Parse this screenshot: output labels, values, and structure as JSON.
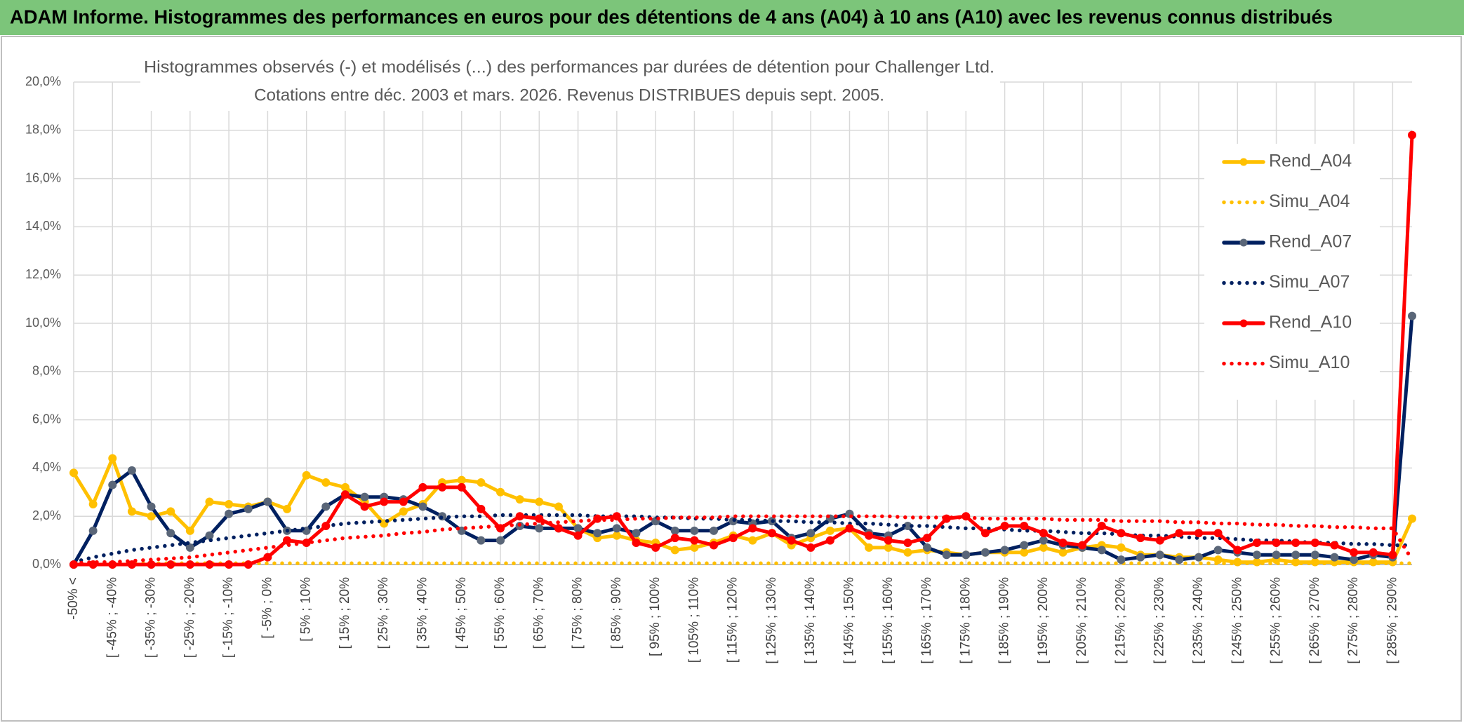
{
  "chart_data": {
    "type": "line",
    "title": "ADAM Informe. Histogrammes des performances en euros pour des détentions de 4 ans (A04) à 10 ans (A10) avec les revenus connus distribués",
    "subtitle": [
      "Histogrammes observés (-) et modélisés (...) des performances par durées de détention pour Challenger Ltd.",
      "Cotations entre déc. 2003 et mars. 2026. Revenus DISTRIBUES depuis sept. 2005."
    ],
    "categories": [
      "-50% <",
      null,
      "[ -45% ; -40%",
      null,
      "[ -35% ; -30%",
      null,
      "[ -25% ; -20%",
      null,
      "[ -15% ; -10%",
      null,
      "[ -5% ; 0%",
      null,
      "[ 5% ; 10%",
      null,
      "[ 15% ; 20%",
      null,
      "[ 25% ; 30%",
      null,
      "[ 35% ; 40%",
      null,
      "[ 45% ; 50%",
      null,
      "[ 55% ; 60%",
      null,
      "[ 65% ; 70%",
      null,
      "[ 75% ; 80%",
      null,
      "[ 85% ; 90%",
      null,
      "[ 95% ; 100%",
      null,
      "[ 105% ; 110%",
      null,
      "[ 115% ; 120%",
      null,
      "[ 125% ; 130%",
      null,
      "[ 135% ; 140%",
      null,
      "[ 145% ; 150%",
      null,
      "[ 155% ; 160%",
      null,
      "[ 165% ; 170%",
      null,
      "[ 175% ; 180%",
      null,
      "[ 185% ; 190%",
      null,
      "[ 195% ; 200%",
      null,
      "[ 205% ; 210%",
      null,
      "[ 215% ; 220%",
      null,
      "[ 225% ; 230%",
      null,
      "[ 235% ; 240%",
      null,
      "[ 245% ; 250%",
      null,
      "[ 255% ; 260%",
      null,
      "[ 265% ; 270%",
      null,
      "[ 275% ; 280%",
      null,
      "[ 285% ; 290%",
      null
    ],
    "series": [
      {
        "name": "Rend_A04",
        "color": "#ffc000",
        "marker_color": "#ffc000",
        "dash": "solid",
        "marker": true,
        "values": [
          3.8,
          2.5,
          4.4,
          2.2,
          2.0,
          2.2,
          1.4,
          2.6,
          2.5,
          2.4,
          2.6,
          2.3,
          3.7,
          3.4,
          3.2,
          2.6,
          1.7,
          2.2,
          2.5,
          3.4,
          3.5,
          3.4,
          3.0,
          2.7,
          2.6,
          2.4,
          1.5,
          1.1,
          1.2,
          1.0,
          0.9,
          0.6,
          0.7,
          0.9,
          1.2,
          1.0,
          1.3,
          0.8,
          1.1,
          1.4,
          1.5,
          0.7,
          0.7,
          0.5,
          0.6,
          0.5,
          0.4,
          0.5,
          0.5,
          0.5,
          0.7,
          0.5,
          0.7,
          0.8,
          0.7,
          0.4,
          0.4,
          0.3,
          0.3,
          0.2,
          0.1,
          0.1,
          0.2,
          0.1,
          0.1,
          0.1,
          0.1,
          0.1,
          0.1,
          1.9
        ]
      },
      {
        "name": "Simu_A04",
        "color": "#ffc000",
        "dash": "dotted",
        "marker": false,
        "values": [
          0.05,
          0.05,
          0.05,
          0.05,
          0.05,
          0.05,
          0.05,
          0.05,
          0.05,
          0.05,
          0.05,
          0.05,
          0.05,
          0.05,
          0.05,
          0.05,
          0.05,
          0.05,
          0.05,
          0.05,
          0.05,
          0.05,
          0.05,
          0.05,
          0.05,
          0.05,
          0.05,
          0.05,
          0.05,
          0.05,
          0.05,
          0.05,
          0.05,
          0.05,
          0.05,
          0.05,
          0.05,
          0.05,
          0.05,
          0.05,
          0.05,
          0.05,
          0.05,
          0.05,
          0.05,
          0.05,
          0.05,
          0.05,
          0.05,
          0.05,
          0.05,
          0.05,
          0.05,
          0.05,
          0.05,
          0.05,
          0.05,
          0.05,
          0.05,
          0.05,
          0.05,
          0.05,
          0.05,
          0.05,
          0.05,
          0.05,
          0.05,
          0.05,
          0.05,
          0.05
        ]
      },
      {
        "name": "Rend_A07",
        "color": "#002060",
        "marker_color": "#5a6678",
        "dash": "solid",
        "marker": true,
        "values": [
          0.0,
          1.4,
          3.3,
          3.9,
          2.4,
          1.3,
          0.7,
          1.2,
          2.1,
          2.3,
          2.6,
          1.4,
          1.4,
          2.4,
          2.9,
          2.8,
          2.8,
          2.7,
          2.4,
          2.0,
          1.4,
          1.0,
          1.0,
          1.6,
          1.5,
          1.5,
          1.5,
          1.3,
          1.5,
          1.3,
          1.8,
          1.4,
          1.4,
          1.4,
          1.8,
          1.7,
          1.8,
          1.1,
          1.3,
          1.9,
          2.1,
          1.3,
          1.2,
          1.6,
          0.7,
          0.4,
          0.4,
          0.5,
          0.6,
          0.8,
          1.0,
          0.8,
          0.7,
          0.6,
          0.2,
          0.3,
          0.4,
          0.2,
          0.3,
          0.6,
          0.5,
          0.4,
          0.4,
          0.4,
          0.4,
          0.3,
          0.2,
          0.4,
          0.3,
          10.3
        ]
      },
      {
        "name": "Simu_A07",
        "color": "#002060",
        "dash": "dotted",
        "marker": false,
        "values": [
          0.1,
          0.3,
          0.45,
          0.6,
          0.7,
          0.8,
          0.9,
          1.0,
          1.1,
          1.2,
          1.3,
          1.4,
          1.5,
          1.6,
          1.7,
          1.75,
          1.8,
          1.85,
          1.9,
          1.95,
          2.0,
          2.0,
          2.05,
          2.05,
          2.05,
          2.05,
          2.05,
          2.0,
          2.0,
          2.0,
          1.95,
          1.95,
          1.9,
          1.9,
          1.85,
          1.85,
          1.8,
          1.8,
          1.75,
          1.75,
          1.7,
          1.7,
          1.65,
          1.6,
          1.6,
          1.55,
          1.5,
          1.5,
          1.45,
          1.4,
          1.4,
          1.35,
          1.3,
          1.3,
          1.25,
          1.2,
          1.2,
          1.15,
          1.1,
          1.1,
          1.05,
          1.0,
          1.0,
          0.95,
          0.9,
          0.9,
          0.85,
          0.85,
          0.8,
          0.8
        ]
      },
      {
        "name": "Rend_A10",
        "color": "#ff0000",
        "marker_color": "#ff0000",
        "dash": "solid",
        "marker": true,
        "values": [
          0.0,
          0.0,
          0.0,
          0.0,
          0.0,
          0.0,
          0.0,
          0.0,
          0.0,
          0.0,
          0.3,
          1.0,
          0.9,
          1.6,
          2.9,
          2.4,
          2.6,
          2.6,
          3.2,
          3.2,
          3.2,
          2.3,
          1.5,
          2.0,
          1.9,
          1.5,
          1.2,
          1.9,
          2.0,
          0.9,
          0.7,
          1.1,
          1.0,
          0.8,
          1.1,
          1.5,
          1.3,
          1.0,
          0.7,
          1.0,
          1.5,
          1.2,
          1.0,
          0.9,
          1.1,
          1.9,
          2.0,
          1.3,
          1.6,
          1.6,
          1.3,
          0.9,
          0.8,
          1.6,
          1.3,
          1.1,
          1.0,
          1.3,
          1.3,
          1.3,
          0.6,
          0.9,
          0.9,
          0.9,
          0.9,
          0.8,
          0.5,
          0.5,
          0.4,
          17.8
        ]
      },
      {
        "name": "Simu_A10",
        "color": "#ff0000",
        "dash": "dotted",
        "marker": false,
        "values": [
          0.05,
          0.1,
          0.1,
          0.15,
          0.2,
          0.25,
          0.3,
          0.4,
          0.5,
          0.6,
          0.7,
          0.8,
          0.9,
          1.0,
          1.1,
          1.15,
          1.2,
          1.3,
          1.35,
          1.45,
          1.5,
          1.55,
          1.6,
          1.65,
          1.7,
          1.75,
          1.8,
          1.85,
          1.85,
          1.9,
          1.9,
          1.95,
          1.95,
          1.95,
          2.0,
          2.0,
          2.0,
          2.0,
          2.0,
          2.0,
          2.0,
          2.0,
          2.0,
          1.95,
          1.95,
          1.95,
          1.95,
          1.9,
          1.9,
          1.9,
          1.9,
          1.85,
          1.85,
          1.85,
          1.8,
          1.8,
          1.8,
          1.75,
          1.75,
          1.7,
          1.7,
          1.65,
          1.65,
          1.6,
          1.6,
          1.55,
          1.55,
          1.5,
          1.5,
          0.2
        ]
      }
    ],
    "ylim": [
      0,
      20
    ],
    "yticks": [
      {
        "value": 0,
        "label": "0,0%"
      },
      {
        "value": 2,
        "label": "2,0%"
      },
      {
        "value": 4,
        "label": "4,0%"
      },
      {
        "value": 6,
        "label": "6,0%"
      },
      {
        "value": 8,
        "label": "8,0%"
      },
      {
        "value": 10,
        "label": "10,0%"
      },
      {
        "value": 12,
        "label": "12,0%"
      },
      {
        "value": 14,
        "label": "14,0%"
      },
      {
        "value": 16,
        "label": "16,0%"
      },
      {
        "value": 18,
        "label": "18,0%"
      },
      {
        "value": 20,
        "label": "20,0%"
      }
    ],
    "grid": true,
    "legend": "upper right"
  }
}
